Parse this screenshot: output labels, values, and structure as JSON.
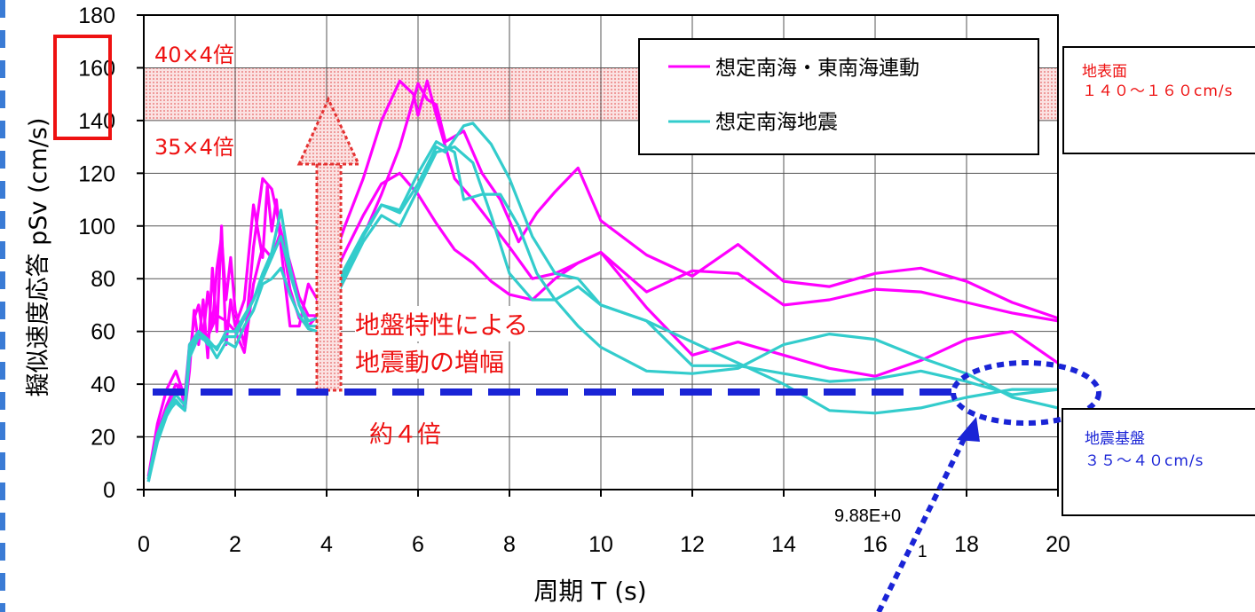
{
  "chart_data": {
    "type": "line",
    "xlabel": "周期 T (s)",
    "ylabel": "擬似速度応答 pSv (cm/s)",
    "xlim": [
      0,
      20
    ],
    "ylim": [
      0,
      180
    ],
    "xticks": [
      0,
      2,
      4,
      6,
      8,
      10,
      12,
      14,
      16,
      18,
      20
    ],
    "yticks": [
      0,
      20,
      40,
      60,
      80,
      100,
      120,
      140,
      160,
      180
    ],
    "grid": true,
    "legend_position": "top-right",
    "legend": [
      "想定南海・東南海連動",
      "想定南海地震"
    ],
    "series": [
      {
        "name": "想定南海・東南海連動",
        "color": "#ff00ff",
        "x": [
          0.1,
          0.3,
          0.5,
          0.7,
          0.8,
          0.9,
          1.0,
          1.1,
          1.2,
          1.3,
          1.4,
          1.5,
          1.6,
          1.7,
          1.8,
          1.9,
          2.0,
          2.2,
          2.4,
          2.6,
          2.7,
          2.8,
          2.9,
          3.0,
          3.2,
          3.4,
          3.6,
          3.8,
          4.0,
          4.4,
          4.8,
          5.2,
          5.6,
          5.9,
          6.0,
          6.2,
          6.4,
          6.8,
          7.2,
          7.6,
          8.0,
          8.5,
          9.0,
          10.0,
          11.0,
          12.0,
          13.0,
          14.0,
          15.0,
          16.0,
          17.0,
          18.0,
          19.0,
          20.0
        ],
        "y": [
          3,
          20,
          30,
          37,
          40,
          30,
          45,
          68,
          55,
          72,
          50,
          84,
          60,
          100,
          55,
          72,
          62,
          72,
          108,
          88,
          115,
          98,
          110,
          92,
          62,
          62,
          78,
          72,
          80,
          100,
          118,
          140,
          155,
          150,
          142,
          155,
          142,
          118,
          110,
          101,
          92,
          80,
          82,
          90,
          75,
          83,
          82,
          70,
          72,
          76,
          75,
          71,
          67,
          64
        ]
      },
      {
        "name": "想定南海・東南海連動",
        "color": "#ff00ff",
        "x": [
          0.1,
          0.3,
          0.5,
          0.7,
          0.9,
          1.0,
          1.1,
          1.2,
          1.3,
          1.4,
          1.5,
          1.6,
          1.7,
          1.8,
          1.9,
          2.0,
          2.2,
          2.4,
          2.6,
          2.8,
          3.0,
          3.2,
          3.4,
          3.6,
          3.8,
          4.0,
          4.4,
          4.8,
          5.2,
          5.6,
          6.0,
          6.2,
          6.4,
          6.6,
          7.0,
          7.4,
          7.8,
          8.2,
          8.6,
          9.0,
          9.5,
          10.0,
          11.0,
          12.0,
          13.0,
          14.0,
          15.0,
          16.0,
          17.0,
          18.0,
          19.0,
          20.0
        ],
        "y": [
          5,
          25,
          38,
          45,
          35,
          50,
          65,
          70,
          58,
          75,
          62,
          84,
          96,
          72,
          88,
          68,
          55,
          92,
          118,
          114,
          98,
          86,
          73,
          66,
          66,
          68,
          80,
          96,
          112,
          130,
          154,
          148,
          146,
          132,
          136,
          120,
          110,
          94,
          105,
          113,
          122,
          102,
          89,
          81,
          93,
          79,
          77,
          82,
          84,
          79,
          71,
          65
        ]
      },
      {
        "name": "想定南海・東南海連動",
        "color": "#ff00ff",
        "x": [
          0.1,
          0.3,
          0.5,
          0.7,
          0.9,
          1.0,
          1.2,
          1.4,
          1.6,
          1.8,
          2.0,
          2.2,
          2.4,
          2.6,
          2.8,
          3.0,
          3.2,
          3.4,
          3.6,
          3.8,
          4.0,
          4.4,
          4.8,
          5.2,
          5.6,
          6.0,
          6.4,
          6.8,
          7.2,
          7.6,
          8.0,
          8.5,
          9.0,
          9.5,
          10.0,
          11.0,
          12.0,
          13.0,
          14.0,
          15.0,
          16.0,
          17.0,
          18.0,
          19.0,
          20.0
        ],
        "y": [
          4,
          22,
          32,
          40,
          36,
          55,
          60,
          58,
          66,
          64,
          60,
          52,
          78,
          92,
          88,
          98,
          76,
          65,
          62,
          66,
          75,
          90,
          104,
          116,
          120,
          112,
          101,
          91,
          86,
          79,
          74,
          72,
          80,
          86,
          90,
          69,
          51,
          56,
          51,
          46,
          43,
          49,
          57,
          60,
          48
        ]
      },
      {
        "name": "想定南海地震",
        "color": "#33cccc",
        "x": [
          0.1,
          0.3,
          0.5,
          0.7,
          0.9,
          1.0,
          1.2,
          1.4,
          1.6,
          1.8,
          2.0,
          2.2,
          2.4,
          2.6,
          2.8,
          3.0,
          3.2,
          3.4,
          3.6,
          3.8,
          4.0,
          4.4,
          4.8,
          5.2,
          5.6,
          6.0,
          6.4,
          6.8,
          7.0,
          7.4,
          7.8,
          8.2,
          8.6,
          9.0,
          9.5,
          10.0,
          11.0,
          12.0,
          13.0,
          14.0,
          15.0,
          16.0,
          17.0,
          18.0,
          19.0,
          20.0
        ],
        "y": [
          3,
          18,
          28,
          34,
          30,
          52,
          60,
          55,
          54,
          58,
          58,
          65,
          72,
          82,
          90,
          106,
          84,
          70,
          62,
          62,
          68,
          82,
          96,
          108,
          106,
          120,
          132,
          128,
          110,
          112,
          112,
          100,
          82,
          72,
          62,
          54,
          45,
          44,
          46,
          55,
          59,
          57,
          50,
          44,
          35,
          31
        ]
      },
      {
        "name": "想定南海地震",
        "color": "#33cccc",
        "x": [
          0.1,
          0.3,
          0.5,
          0.7,
          0.9,
          1.0,
          1.2,
          1.4,
          1.6,
          1.8,
          2.0,
          2.2,
          2.4,
          2.6,
          2.8,
          3.0,
          3.2,
          3.4,
          3.6,
          3.8,
          4.0,
          4.4,
          4.8,
          5.2,
          5.6,
          6.0,
          6.4,
          6.8,
          7.2,
          7.6,
          8.0,
          8.5,
          9.0,
          9.5,
          10.0,
          11.0,
          12.0,
          13.0,
          14.0,
          15.0,
          16.0,
          17.0,
          18.0,
          19.0,
          20.0
        ],
        "y": [
          3,
          20,
          29,
          33,
          30,
          50,
          58,
          56,
          50,
          56,
          54,
          62,
          68,
          78,
          80,
          84,
          74,
          66,
          61,
          60,
          66,
          80,
          94,
          104,
          100,
          114,
          128,
          130,
          124,
          104,
          82,
          72,
          72,
          77,
          70,
          64,
          56,
          48,
          40,
          30,
          29,
          31,
          35,
          38,
          38
        ]
      },
      {
        "name": "想定南海地震",
        "color": "#33cccc",
        "x": [
          0.1,
          0.3,
          0.5,
          0.7,
          0.9,
          1.0,
          1.2,
          1.4,
          1.6,
          1.8,
          2.0,
          2.2,
          2.4,
          2.6,
          2.8,
          3.0,
          3.2,
          3.4,
          3.6,
          3.8,
          4.0,
          4.4,
          4.8,
          5.2,
          5.6,
          6.0,
          6.4,
          6.6,
          7.0,
          7.2,
          7.6,
          8.0,
          8.5,
          9.0,
          9.5,
          10.0,
          11.0,
          12.0,
          13.0,
          14.0,
          15.0,
          16.0,
          17.0,
          18.0,
          19.0,
          20.0
        ],
        "y": [
          4,
          21,
          30,
          36,
          32,
          55,
          60,
          57,
          53,
          60,
          60,
          66,
          72,
          80,
          88,
          96,
          82,
          70,
          64,
          65,
          70,
          84,
          97,
          108,
          105,
          116,
          130,
          128,
          138,
          139,
          131,
          118,
          96,
          82,
          80,
          70,
          64,
          47,
          47,
          44,
          41,
          42,
          45,
          41,
          36,
          38
        ]
      }
    ],
    "band": {
      "y_low": 140,
      "y_high": 160
    },
    "baseline": {
      "y": 37
    },
    "annotations": {
      "band_upper": "40×4倍",
      "band_lower": "35×4倍",
      "amplification_line1": "地盤特性による",
      "amplification_line2": "地震動の増幅",
      "approx_factor": "約４倍",
      "stray_label": "9.88E+0",
      "stray_digit": "1"
    },
    "colors": {
      "series_a": "#ff00ff",
      "series_b": "#33cccc",
      "annotation_red": "#ee1111",
      "baseline_blue": "#1a24d6",
      "band_fill": "#f7c3c3"
    }
  },
  "callouts": {
    "surface_title": "地表面",
    "surface_range": "１４０～１６０cm/s",
    "bedrock_title": "地震基盤",
    "bedrock_range": "３５～４０cm/s"
  }
}
